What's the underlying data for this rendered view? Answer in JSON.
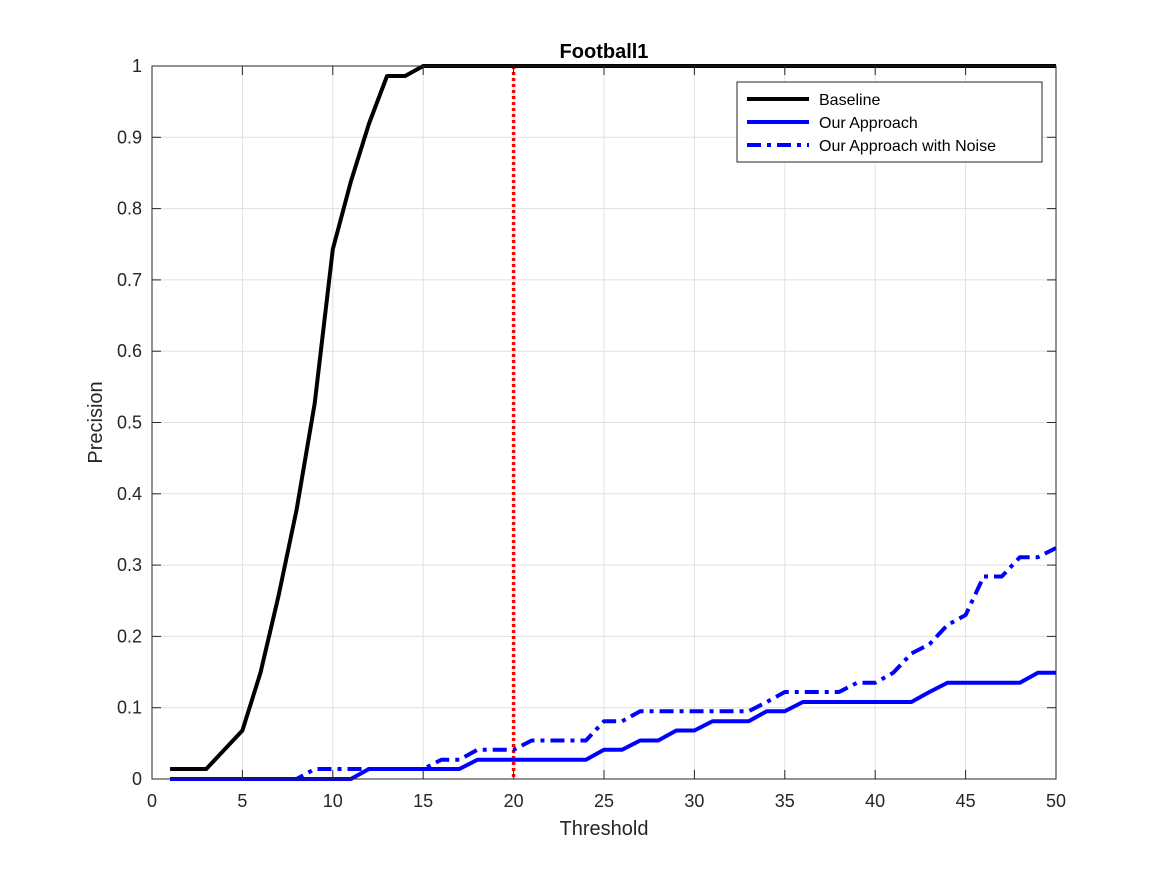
{
  "chart_data": {
    "type": "line",
    "title": "Football1",
    "xlabel": "Threshold",
    "ylabel": "Precision",
    "xlim": [
      0,
      50
    ],
    "ylim": [
      0,
      1
    ],
    "xticks": [
      0,
      5,
      10,
      15,
      20,
      25,
      30,
      35,
      40,
      45,
      50
    ],
    "xtick_labels": [
      "0",
      "5",
      "10",
      "15",
      "20",
      "25",
      "30",
      "35",
      "40",
      "45",
      "50"
    ],
    "yticks": [
      0,
      0.1,
      0.2,
      0.3,
      0.4,
      0.5,
      0.6,
      0.7,
      0.8,
      0.9,
      1
    ],
    "ytick_labels": [
      "0",
      "0.1",
      "0.2",
      "0.3",
      "0.4",
      "0.5",
      "0.6",
      "0.7",
      "0.8",
      "0.9",
      "1"
    ],
    "grid": true,
    "legend_position": "top-right",
    "series": [
      {
        "name": "Baseline",
        "color": "#000000",
        "style": "solid",
        "x": [
          1,
          2,
          3,
          4,
          5,
          6,
          7,
          8,
          9,
          10,
          11,
          12,
          13,
          14,
          15,
          16,
          17,
          18,
          19,
          20,
          21,
          22,
          23,
          24,
          25,
          26,
          27,
          28,
          29,
          30,
          31,
          32,
          33,
          34,
          35,
          36,
          37,
          38,
          39,
          40,
          41,
          42,
          43,
          44,
          45,
          46,
          47,
          48,
          49,
          50
        ],
        "y": [
          0.014,
          0.014,
          0.014,
          0.041,
          0.068,
          0.149,
          0.257,
          0.378,
          0.527,
          0.743,
          0.838,
          0.919,
          0.986,
          0.986,
          1,
          1,
          1,
          1,
          1,
          1,
          1,
          1,
          1,
          1,
          1,
          1,
          1,
          1,
          1,
          1,
          1,
          1,
          1,
          1,
          1,
          1,
          1,
          1,
          1,
          1,
          1,
          1,
          1,
          1,
          1,
          1,
          1,
          1,
          1,
          1
        ]
      },
      {
        "name": "Our Approach",
        "color": "#0000ff",
        "style": "solid",
        "x": [
          1,
          2,
          3,
          4,
          5,
          6,
          7,
          8,
          9,
          10,
          11,
          12,
          13,
          14,
          15,
          16,
          17,
          18,
          19,
          20,
          21,
          22,
          23,
          24,
          25,
          26,
          27,
          28,
          29,
          30,
          31,
          32,
          33,
          34,
          35,
          36,
          37,
          38,
          39,
          40,
          41,
          42,
          43,
          44,
          45,
          46,
          47,
          48,
          49,
          50
        ],
        "y": [
          0,
          0,
          0,
          0,
          0,
          0,
          0,
          0,
          0,
          0,
          0,
          0.014,
          0.014,
          0.014,
          0.014,
          0.014,
          0.014,
          0.027,
          0.027,
          0.027,
          0.027,
          0.027,
          0.027,
          0.027,
          0.041,
          0.041,
          0.054,
          0.054,
          0.068,
          0.068,
          0.081,
          0.081,
          0.081,
          0.095,
          0.095,
          0.108,
          0.108,
          0.108,
          0.108,
          0.108,
          0.108,
          0.108,
          0.122,
          0.135,
          0.135,
          0.135,
          0.135,
          0.135,
          0.149,
          0.149
        ]
      },
      {
        "name": "Our Approach with Noise",
        "color": "#0000ff",
        "style": "dashdot",
        "x": [
          1,
          2,
          3,
          4,
          5,
          6,
          7,
          8,
          9,
          10,
          11,
          12,
          13,
          14,
          15,
          16,
          17,
          18,
          19,
          20,
          21,
          22,
          23,
          24,
          25,
          26,
          27,
          28,
          29,
          30,
          31,
          32,
          33,
          34,
          35,
          36,
          37,
          38,
          39,
          40,
          41,
          42,
          43,
          44,
          45,
          46,
          47,
          48,
          49,
          50
        ],
        "y": [
          0,
          0,
          0,
          0,
          0,
          0,
          0,
          0,
          0.014,
          0.014,
          0.014,
          0.014,
          0.014,
          0.014,
          0.014,
          0.027,
          0.027,
          0.041,
          0.041,
          0.041,
          0.054,
          0.054,
          0.054,
          0.054,
          0.081,
          0.081,
          0.095,
          0.095,
          0.095,
          0.095,
          0.095,
          0.095,
          0.095,
          0.108,
          0.122,
          0.122,
          0.122,
          0.122,
          0.135,
          0.135,
          0.149,
          0.176,
          0.189,
          0.216,
          0.23,
          0.284,
          0.284,
          0.311,
          0.311,
          0.324
        ]
      }
    ],
    "reference_line": {
      "x": 20,
      "color": "#ff0000",
      "style": "dotted"
    }
  }
}
